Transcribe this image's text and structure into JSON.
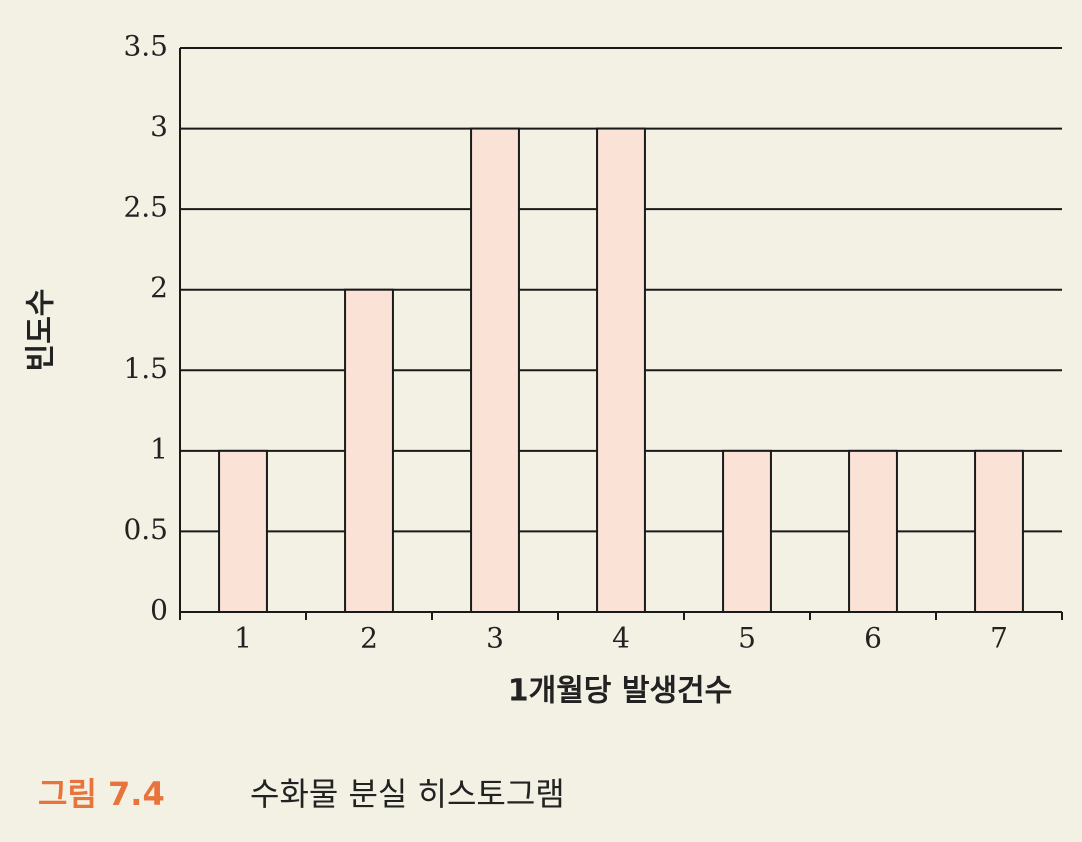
{
  "chart_data": {
    "type": "bar",
    "categories": [
      "1",
      "2",
      "3",
      "4",
      "5",
      "6",
      "7"
    ],
    "values": [
      1,
      2,
      3,
      3,
      1,
      1,
      1
    ],
    "color": "#fbe2d6",
    "ylim": [
      0,
      3.5
    ],
    "yticks": [
      0,
      0.5,
      1,
      1.5,
      2,
      2.5,
      3,
      3.5
    ],
    "grid": true,
    "ylabel": "빈도수",
    "xlabel": "1개월당 발생건수",
    "caption_label": "그림 7.4",
    "caption_title": "수화물 분실 히스토그램"
  }
}
